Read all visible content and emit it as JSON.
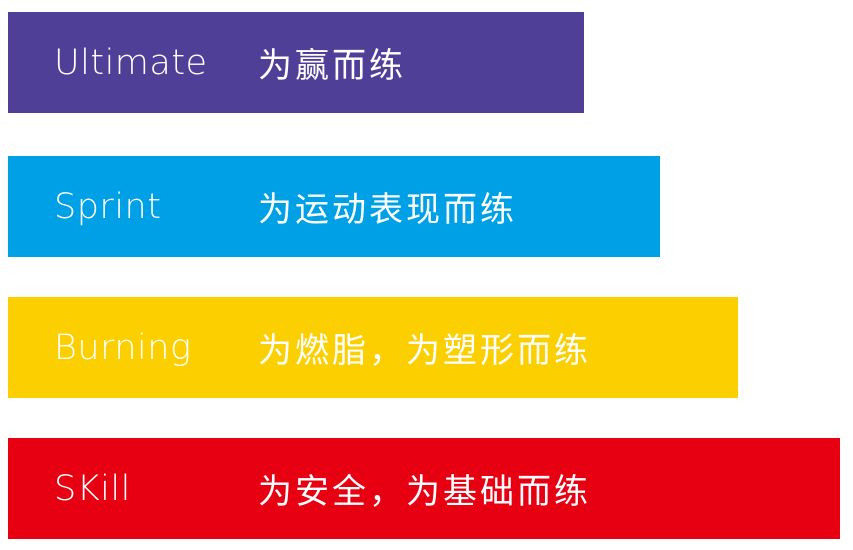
{
  "tiers": [
    {
      "name": "Ultimate",
      "slogan": "为赢而练",
      "color": "#4f3f96"
    },
    {
      "name": "Sprint",
      "slogan": "为运动表现而练",
      "color": "#00a0e6"
    },
    {
      "name": "Burning",
      "slogan": "为燃脂，为塑形而练",
      "color": "#fbcf00"
    },
    {
      "name": "SKill",
      "slogan": "为安全，为基础而练",
      "color": "#e60012"
    }
  ]
}
